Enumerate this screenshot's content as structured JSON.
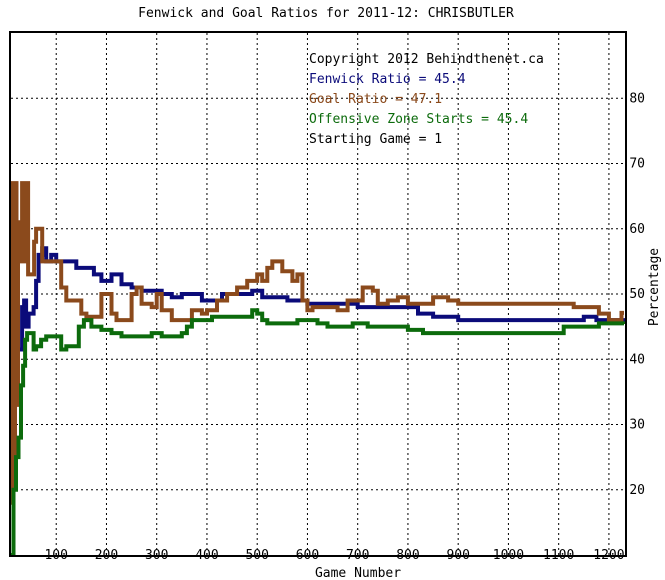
{
  "chart_data": {
    "type": "line",
    "title": "Fenwick and Goal Ratios for 2011-12: CHRISBUTLER",
    "xlabel": "Game Number",
    "ylabel": "Percentage",
    "xlim": [
      10,
      1232
    ],
    "ylim": [
      10,
      90
    ],
    "x_ticks": [
      100,
      200,
      300,
      400,
      500,
      600,
      700,
      800,
      900,
      1000,
      1100,
      1200
    ],
    "y_ticks": [
      20,
      30,
      40,
      50,
      60,
      70,
      80
    ],
    "grid": true,
    "y_axis_side": "right",
    "legend": {
      "placement": "top-right",
      "lines": [
        {
          "text": "Copyright 2012 Behindthenet.ca",
          "color": "#000000"
        },
        {
          "text": "Fenwick Ratio = 45.4",
          "color": "#0b0b7a"
        },
        {
          "text": "Goal Ratio = 47.1",
          "color": "#8b4a1c"
        },
        {
          "text": "Offensive Zone Starts = 45.4",
          "color": "#0c6b0c"
        },
        {
          "text": "Starting Game = 1",
          "color": "#000000"
        }
      ]
    },
    "series": [
      {
        "name": "Fenwick Ratio",
        "color": "#0b0b7a",
        "points": [
          [
            12,
            35
          ],
          [
            18,
            50
          ],
          [
            22,
            41.5
          ],
          [
            30,
            41.5
          ],
          [
            32,
            48
          ],
          [
            36,
            49
          ],
          [
            40,
            45
          ],
          [
            45,
            47
          ],
          [
            55,
            48
          ],
          [
            60,
            52
          ],
          [
            65,
            56
          ],
          [
            72,
            57
          ],
          [
            80,
            55
          ],
          [
            90,
            56
          ],
          [
            100,
            55
          ],
          [
            120,
            55
          ],
          [
            140,
            54
          ],
          [
            160,
            54
          ],
          [
            175,
            53
          ],
          [
            190,
            52
          ],
          [
            210,
            53
          ],
          [
            230,
            51.5
          ],
          [
            250,
            51
          ],
          [
            270,
            50.5
          ],
          [
            290,
            50.5
          ],
          [
            310,
            50
          ],
          [
            330,
            49.5
          ],
          [
            350,
            50
          ],
          [
            370,
            50
          ],
          [
            390,
            49
          ],
          [
            410,
            49
          ],
          [
            430,
            50
          ],
          [
            450,
            50
          ],
          [
            470,
            50
          ],
          [
            490,
            50.5
          ],
          [
            510,
            49.5
          ],
          [
            530,
            49.5
          ],
          [
            560,
            49
          ],
          [
            580,
            49
          ],
          [
            600,
            48.5
          ],
          [
            620,
            48.5
          ],
          [
            650,
            48.5
          ],
          [
            700,
            48
          ],
          [
            750,
            48
          ],
          [
            800,
            48
          ],
          [
            820,
            47
          ],
          [
            850,
            46.5
          ],
          [
            880,
            46.5
          ],
          [
            900,
            46
          ],
          [
            950,
            46
          ],
          [
            1000,
            46
          ],
          [
            1050,
            46
          ],
          [
            1100,
            46
          ],
          [
            1150,
            46.5
          ],
          [
            1175,
            46
          ],
          [
            1200,
            46
          ],
          [
            1220,
            46
          ],
          [
            1230,
            45.4
          ]
        ]
      },
      {
        "name": "Goal Ratio",
        "color": "#8b4a1c",
        "points": [
          [
            10,
            18
          ],
          [
            12,
            67
          ],
          [
            15,
            25
          ],
          [
            18,
            67
          ],
          [
            21,
            33
          ],
          [
            24,
            61
          ],
          [
            28,
            55
          ],
          [
            32,
            67
          ],
          [
            36,
            55
          ],
          [
            40,
            67
          ],
          [
            44,
            53
          ],
          [
            50,
            53
          ],
          [
            56,
            58
          ],
          [
            60,
            60
          ],
          [
            68,
            60
          ],
          [
            72,
            55
          ],
          [
            80,
            55
          ],
          [
            100,
            55
          ],
          [
            110,
            51
          ],
          [
            120,
            49
          ],
          [
            140,
            49
          ],
          [
            150,
            47
          ],
          [
            160,
            46.5
          ],
          [
            180,
            46.5
          ],
          [
            190,
            50
          ],
          [
            200,
            50
          ],
          [
            210,
            47
          ],
          [
            220,
            46
          ],
          [
            240,
            46
          ],
          [
            250,
            50
          ],
          [
            260,
            51
          ],
          [
            270,
            48.5
          ],
          [
            290,
            48
          ],
          [
            300,
            50
          ],
          [
            310,
            47.5
          ],
          [
            330,
            46
          ],
          [
            350,
            46
          ],
          [
            370,
            47.5
          ],
          [
            390,
            47
          ],
          [
            400,
            47.5
          ],
          [
            420,
            49
          ],
          [
            440,
            50
          ],
          [
            460,
            51
          ],
          [
            480,
            52
          ],
          [
            500,
            53
          ],
          [
            510,
            52
          ],
          [
            520,
            54
          ],
          [
            530,
            55
          ],
          [
            550,
            53.5
          ],
          [
            570,
            52
          ],
          [
            580,
            53
          ],
          [
            590,
            49
          ],
          [
            600,
            47.5
          ],
          [
            610,
            48
          ],
          [
            640,
            48
          ],
          [
            660,
            47.5
          ],
          [
            680,
            49
          ],
          [
            700,
            49
          ],
          [
            710,
            51
          ],
          [
            730,
            50.5
          ],
          [
            740,
            48.5
          ],
          [
            760,
            49
          ],
          [
            780,
            49.5
          ],
          [
            800,
            48.5
          ],
          [
            830,
            48.5
          ],
          [
            850,
            49.5
          ],
          [
            880,
            49
          ],
          [
            900,
            48.5
          ],
          [
            950,
            48.5
          ],
          [
            1000,
            48.5
          ],
          [
            1050,
            48.5
          ],
          [
            1100,
            48.5
          ],
          [
            1130,
            48
          ],
          [
            1150,
            48
          ],
          [
            1180,
            47
          ],
          [
            1200,
            46
          ],
          [
            1220,
            46
          ],
          [
            1225,
            47.1
          ],
          [
            1230,
            47.1
          ]
        ]
      },
      {
        "name": "Offensive Zone Starts",
        "color": "#0c6b0c",
        "points": [
          [
            10,
            10
          ],
          [
            15,
            20
          ],
          [
            20,
            25
          ],
          [
            25,
            28
          ],
          [
            30,
            36
          ],
          [
            34,
            39
          ],
          [
            38,
            43
          ],
          [
            42,
            44
          ],
          [
            50,
            44
          ],
          [
            55,
            41.5
          ],
          [
            60,
            42
          ],
          [
            70,
            43
          ],
          [
            80,
            43.5
          ],
          [
            90,
            43.5
          ],
          [
            100,
            43.5
          ],
          [
            110,
            41.5
          ],
          [
            120,
            42
          ],
          [
            135,
            42
          ],
          [
            145,
            45
          ],
          [
            155,
            46
          ],
          [
            170,
            45
          ],
          [
            190,
            44.5
          ],
          [
            210,
            44
          ],
          [
            230,
            43.5
          ],
          [
            250,
            43.5
          ],
          [
            270,
            43.5
          ],
          [
            290,
            44
          ],
          [
            310,
            43.5
          ],
          [
            330,
            43.5
          ],
          [
            350,
            44
          ],
          [
            360,
            45
          ],
          [
            370,
            46
          ],
          [
            390,
            46
          ],
          [
            410,
            46.5
          ],
          [
            430,
            46.5
          ],
          [
            450,
            46.5
          ],
          [
            470,
            46.5
          ],
          [
            490,
            47.5
          ],
          [
            500,
            47
          ],
          [
            510,
            46
          ],
          [
            520,
            45.5
          ],
          [
            540,
            45.5
          ],
          [
            560,
            45.5
          ],
          [
            580,
            46
          ],
          [
            600,
            46
          ],
          [
            620,
            45.5
          ],
          [
            640,
            45
          ],
          [
            660,
            45
          ],
          [
            690,
            45.5
          ],
          [
            720,
            45
          ],
          [
            760,
            45
          ],
          [
            800,
            44.5
          ],
          [
            830,
            44
          ],
          [
            860,
            44
          ],
          [
            900,
            44
          ],
          [
            950,
            44
          ],
          [
            1000,
            44
          ],
          [
            1050,
            44
          ],
          [
            1100,
            44
          ],
          [
            1110,
            45
          ],
          [
            1150,
            45
          ],
          [
            1180,
            45.5
          ],
          [
            1200,
            45.5
          ],
          [
            1220,
            45.5
          ],
          [
            1230,
            45.4
          ]
        ]
      }
    ]
  }
}
